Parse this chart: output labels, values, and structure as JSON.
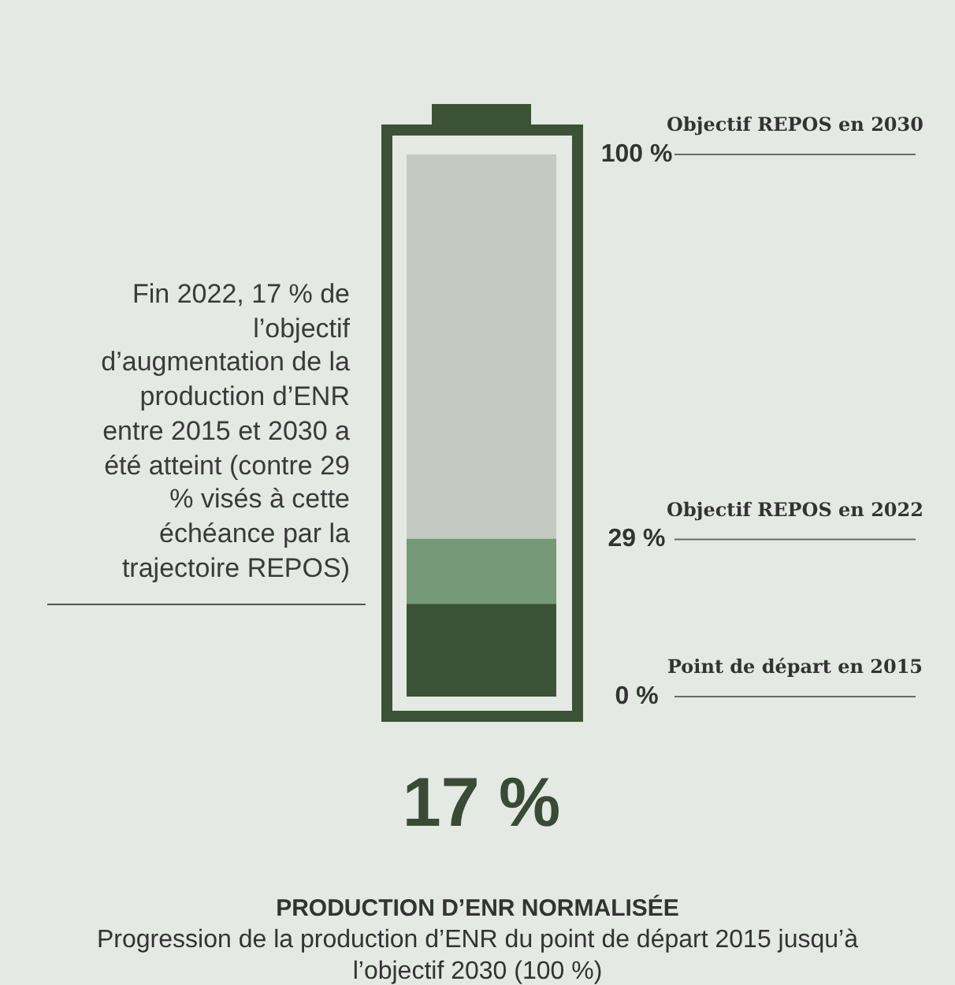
{
  "chart_data": {
    "type": "bar",
    "title": "PRODUCTION D’ENR NORMALISÉE",
    "subtitle": "Progression de la production d’ENR du point de départ 2015 jusqu’à l’objectif 2030 (100 %)",
    "annotations": [
      "Fin 2022, 17 % de l’objectif d’augmentation de la production d’ENR entre 2015 et 2030 a été atteint (contre 29 % visés à cette échéance par la trajectoire REPOS)"
    ],
    "categories": [
      null
    ],
    "stacked": true,
    "series": [
      {
        "color": "#3b5236",
        "values": [
          17
        ],
        "value_labels": [
          "17 %"
        ]
      },
      {
        "color": "#769a78",
        "values": [
          12
        ]
      },
      {
        "color": "#c4c9c2",
        "values": [
          71
        ]
      }
    ],
    "ylim": [
      0,
      100
    ],
    "yticks": [
      {
        "value": 0,
        "label": "0 %"
      },
      {
        "value": 29,
        "label": "29 %"
      },
      {
        "value": 100,
        "label": "100 %"
      }
    ],
    "ref_lines": [
      {
        "axis": "y",
        "value": 0,
        "label": "Point de départ en 2015"
      },
      {
        "axis": "y",
        "value": 29,
        "label": "Objectif REPOS en 2022"
      },
      {
        "axis": "y",
        "value": 100,
        "label": "Objectif REPOS en 2030"
      }
    ],
    "legend": false,
    "grid": false
  }
}
